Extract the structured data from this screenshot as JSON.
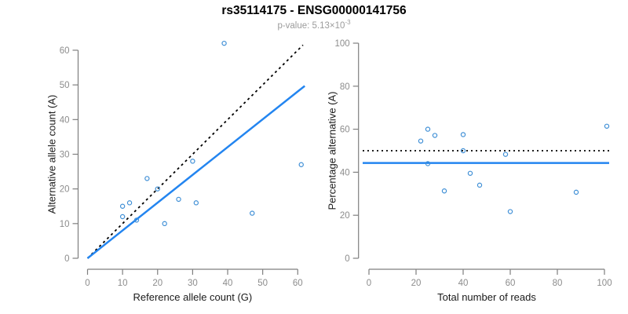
{
  "header": {
    "title": "rs35114175 - ENSG00000141756",
    "subtitle_base": "p-value: 5.13×10",
    "subtitle_exponent": "-3"
  },
  "colors": {
    "point": "#3F8FD6",
    "fit_line": "#2385F0",
    "reference_line": "#000000",
    "axis": "#7f7f7f",
    "tick_label": "#8c8c8c",
    "axis_title": "#1a1a1a",
    "title": "#000000",
    "subtitle": "#9b9b9b"
  },
  "chart_data": [
    {
      "type": "scatter",
      "name": "allele-count-scatter",
      "xlabel": "Reference allele count (G)",
      "ylabel": "Alternative allele count (A)",
      "xlim": [
        0,
        62
      ],
      "ylim": [
        0,
        62
      ],
      "xticks": [
        0,
        10,
        20,
        30,
        40,
        50,
        60
      ],
      "yticks": [
        0,
        10,
        20,
        30,
        40,
        50,
        60
      ],
      "grid": false,
      "points": [
        [
          10,
          15
        ],
        [
          12,
          16
        ],
        [
          17,
          23
        ],
        [
          10,
          12
        ],
        [
          20,
          20
        ],
        [
          30,
          28
        ],
        [
          14,
          11
        ],
        [
          26,
          17
        ],
        [
          22,
          10
        ],
        [
          31,
          16
        ],
        [
          61,
          27
        ],
        [
          47,
          13
        ],
        [
          39,
          62
        ]
      ],
      "lines": [
        {
          "name": "identity-line",
          "style": "dashed",
          "color": "#000000",
          "from": [
            0,
            0
          ],
          "to": [
            61.5,
            61.5
          ]
        },
        {
          "name": "fit-line",
          "style": "solid",
          "color": "#2385F0",
          "from": [
            0,
            0
          ],
          "to": [
            62,
            49.7
          ]
        }
      ]
    },
    {
      "type": "scatter",
      "name": "percentage-scatter",
      "xlabel": "Total number of reads",
      "ylabel": "Percentage alternative (A)",
      "xlim": [
        0,
        101
      ],
      "ylim": [
        0,
        100
      ],
      "xticks": [
        0,
        20,
        40,
        60,
        80,
        100
      ],
      "yticks": [
        0,
        20,
        40,
        60,
        80,
        100
      ],
      "grid": false,
      "points": [
        [
          25,
          60.0
        ],
        [
          28,
          57.1
        ],
        [
          40,
          57.5
        ],
        [
          22,
          54.5
        ],
        [
          40,
          50.0
        ],
        [
          58,
          48.3
        ],
        [
          25,
          44.0
        ],
        [
          43,
          39.5
        ],
        [
          32,
          31.3
        ],
        [
          47,
          34.0
        ],
        [
          88,
          30.7
        ],
        [
          60,
          21.7
        ],
        [
          101,
          61.4
        ]
      ],
      "lines": [
        {
          "name": "fifty-percent-line",
          "style": "dotted",
          "color": "#000000",
          "hline": 50
        },
        {
          "name": "mean-percentage-line",
          "style": "solid",
          "color": "#2385F0",
          "hline": 44.3
        }
      ]
    }
  ]
}
